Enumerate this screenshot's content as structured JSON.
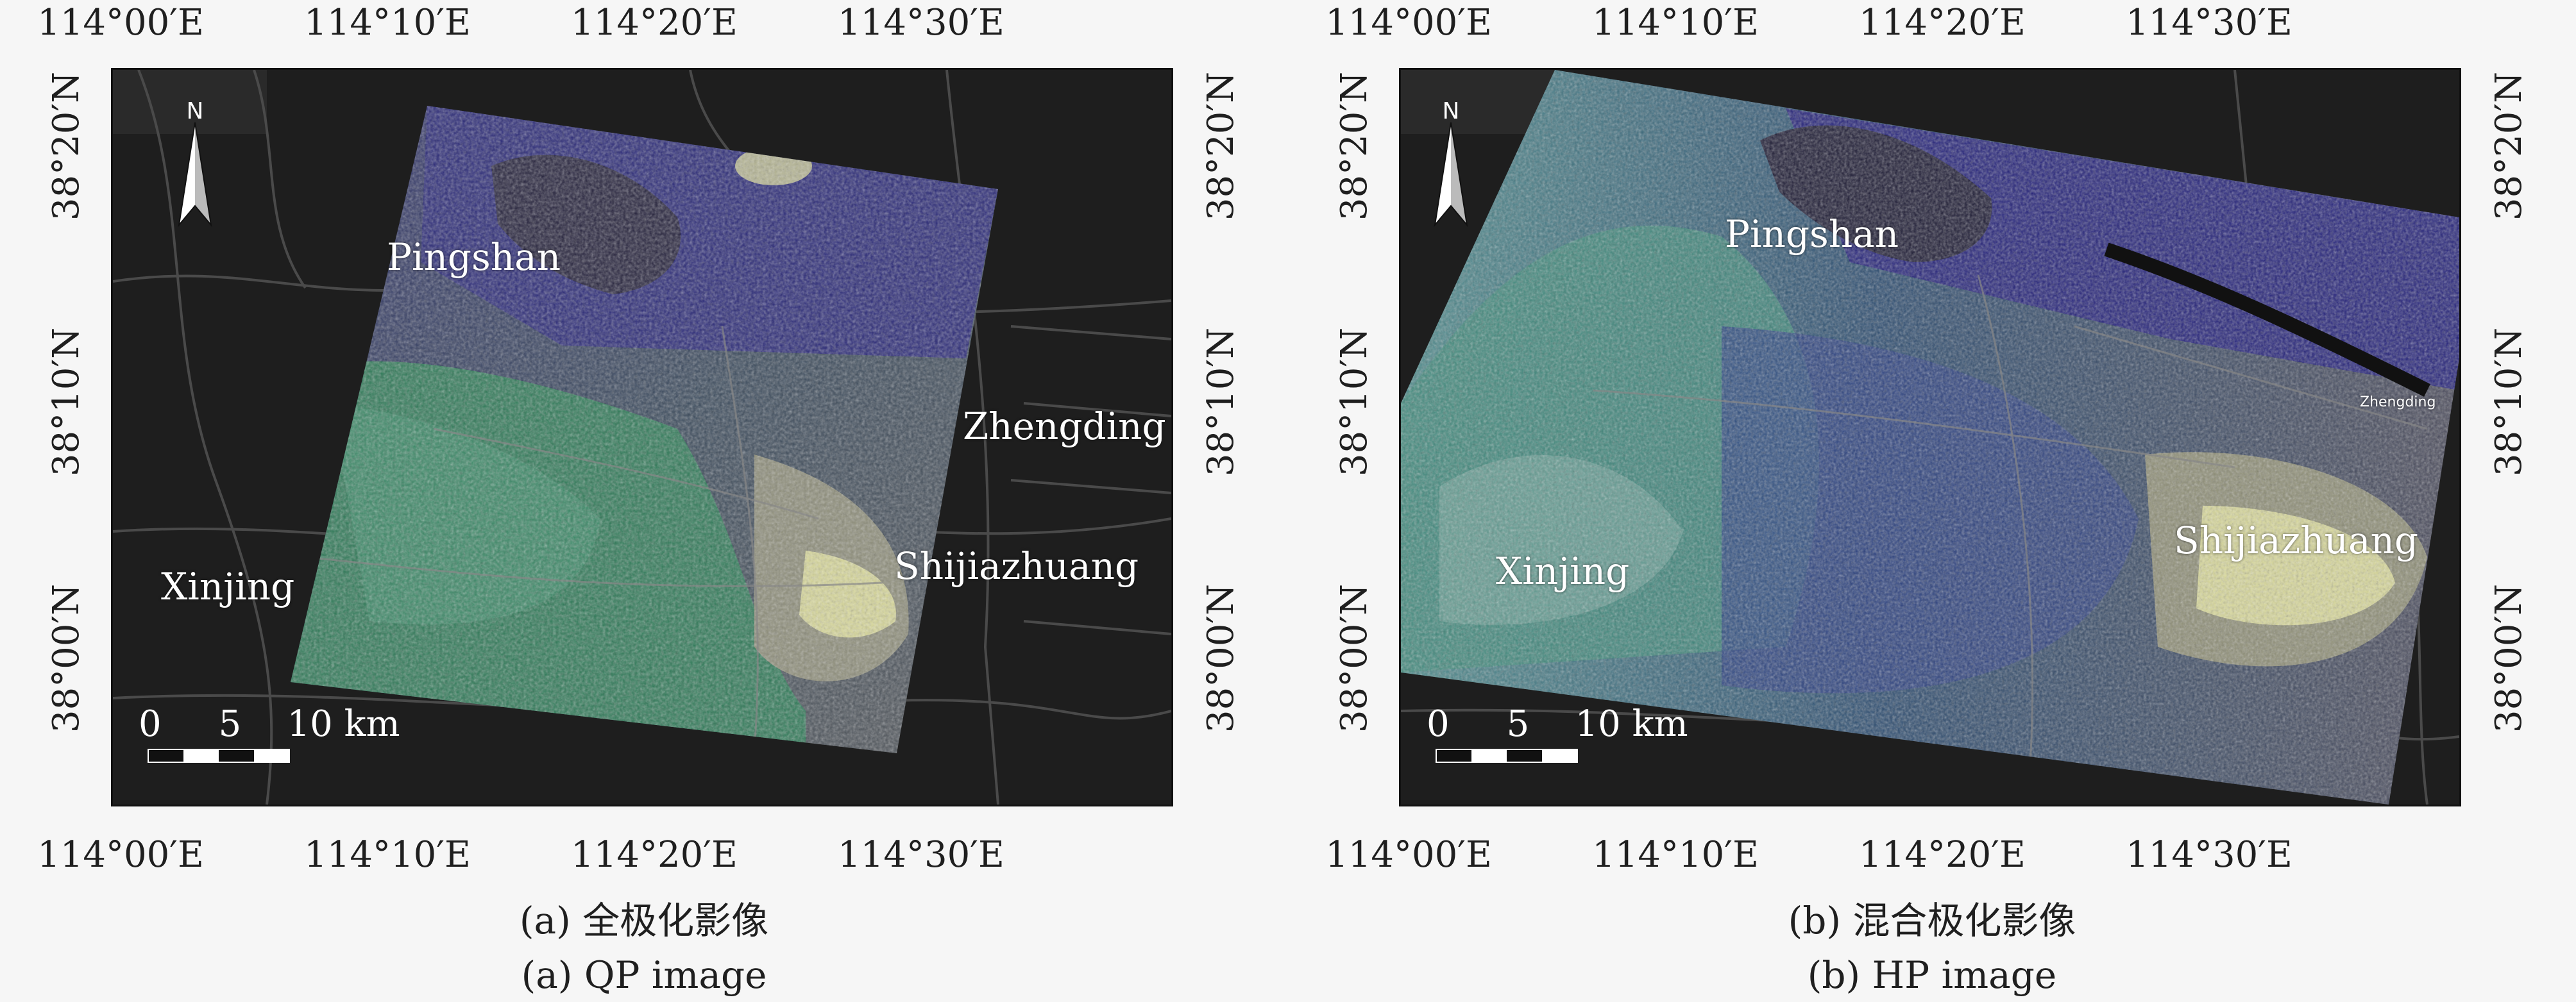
{
  "panels": [
    {
      "id": "a",
      "caption_cn": "(a) 全极化影像",
      "caption_en": "(a) QP image",
      "top_ticks": [
        "114°00′E",
        "114°10′E",
        "114°20′E",
        "114°30′E"
      ],
      "bottom_ticks": [
        "114°00′E",
        "114°10′E",
        "114°20′E",
        "114°30′E"
      ],
      "left_ticks": [
        "38°20′N",
        "38°10′N",
        "38°00′N"
      ],
      "right_ticks": [
        "38°20′N",
        "38°10′N",
        "38°00′N"
      ],
      "places": [
        "Pingshan",
        "Zhengding",
        "Xinjing",
        "Shijiazhuang"
      ],
      "scale": {
        "zero": "0",
        "five": "5",
        "ten": "10",
        "unit": "km"
      },
      "north_label": "N"
    },
    {
      "id": "b",
      "caption_cn": "(b) 混合极化影像",
      "caption_en": "(b) HP image",
      "top_ticks": [
        "114°00′E",
        "114°10′E",
        "114°20′E",
        "114°30′E"
      ],
      "bottom_ticks": [
        "114°00′E",
        "114°10′E",
        "114°20′E",
        "114°30′E"
      ],
      "left_ticks": [
        "38°20′N",
        "38°10′N",
        "38°00′N"
      ],
      "right_ticks": [
        "38°20′N",
        "38°10′N",
        "38°00′N"
      ],
      "places": [
        "Pingshan",
        "Zhengding",
        "Xinjing",
        "Shijiazhuang"
      ],
      "scale": {
        "zero": "0",
        "five": "5",
        "ten": "10",
        "unit": "km"
      },
      "north_label": "N"
    }
  ],
  "colors": {
    "basemap": "#1e1e1e",
    "roads": "#5a5a5a",
    "reservoir": "#25223c",
    "vegetation_green": "#2f7a58",
    "urban_yellow": "#d8d89a",
    "blue_purple": "#2b2a78",
    "speckle_white": "#cfcfcf"
  }
}
